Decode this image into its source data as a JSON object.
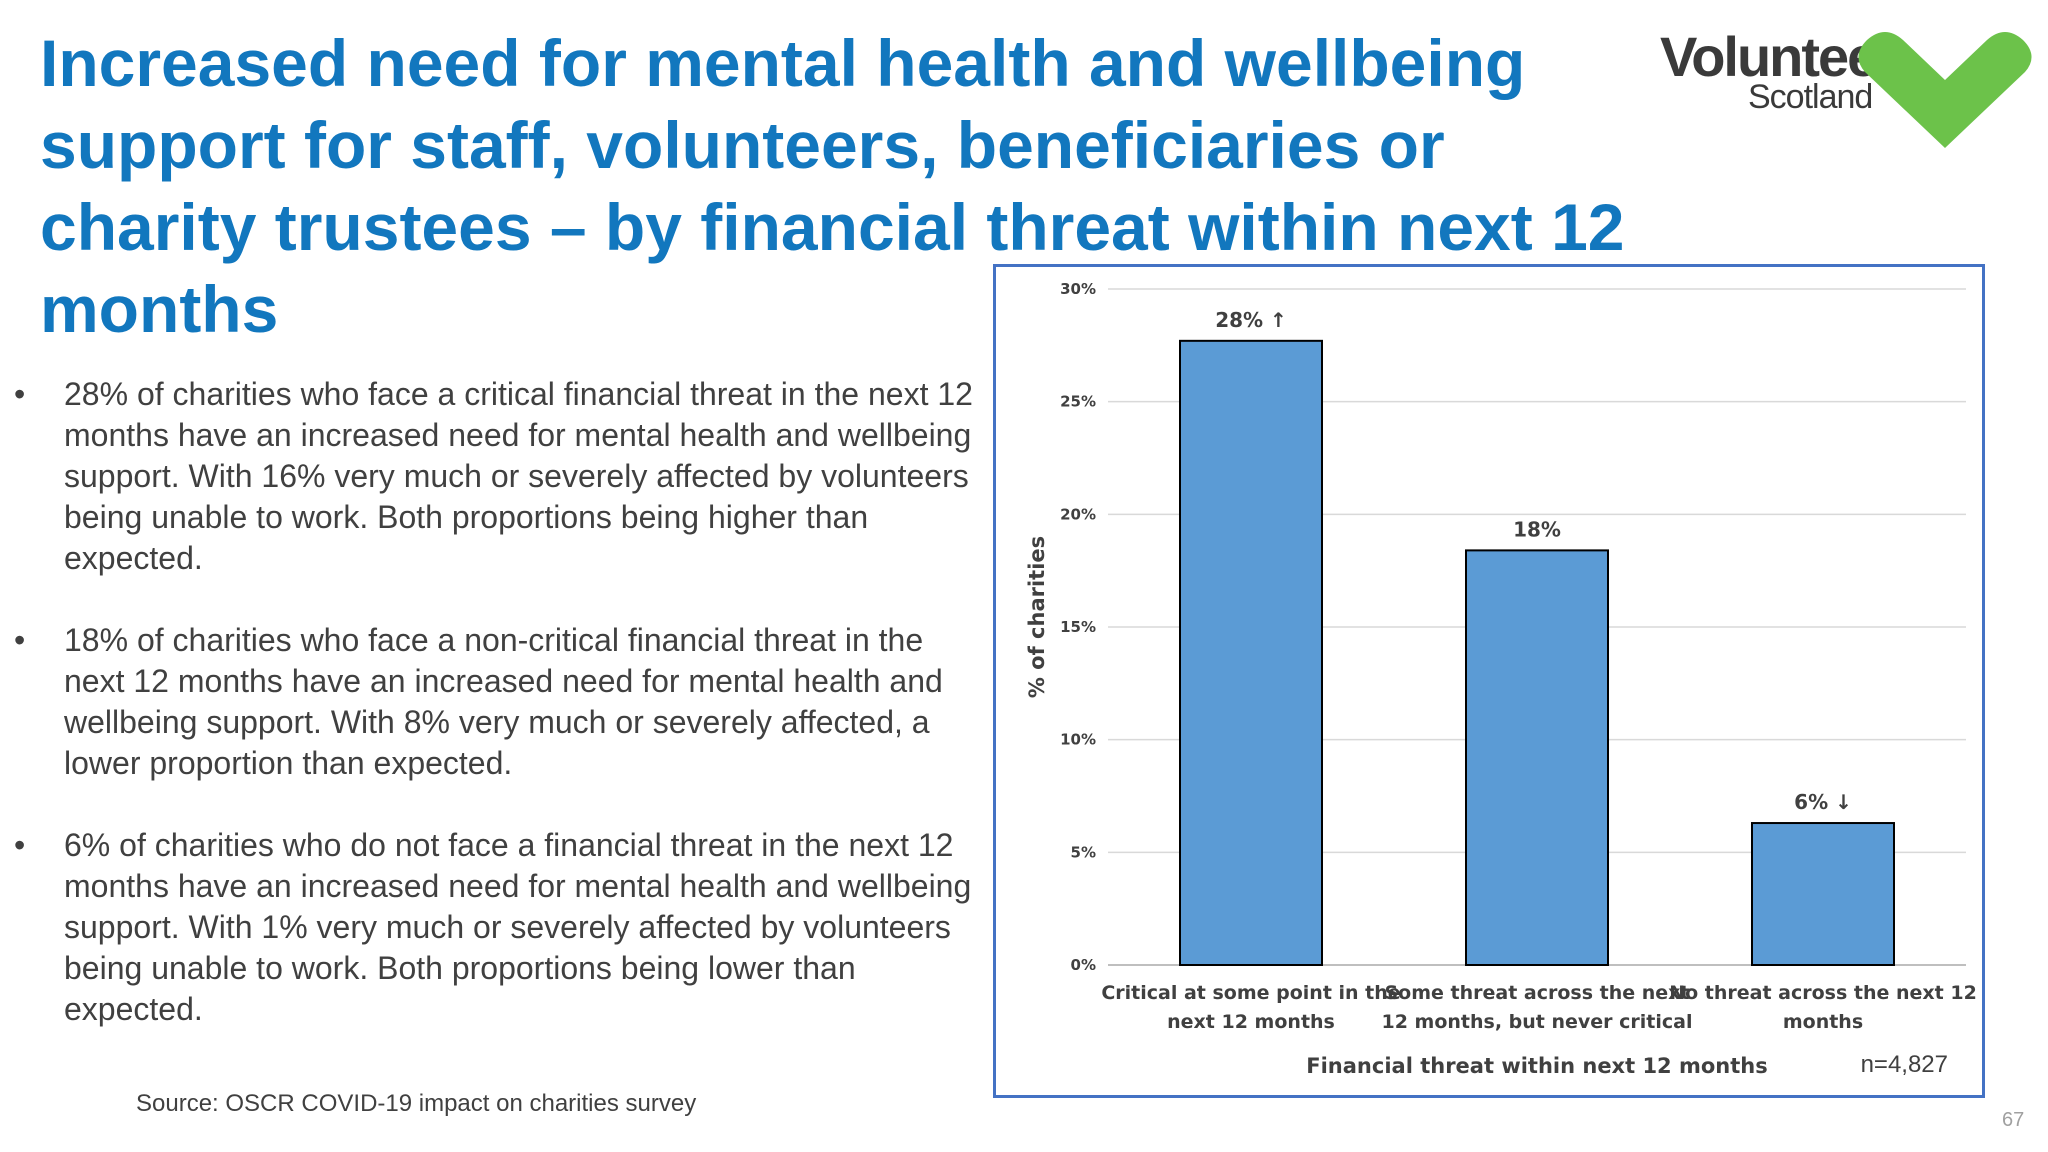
{
  "slide": {
    "title": "Increased need for mental health and wellbeing support for staff, volunteers, beneficiaries or charity trustees –  by financial threat within next 12 months",
    "bullets": [
      "28% of charities who face a critical financial threat in the next 12 months have an increased need for mental health and wellbeing support. With 16% very much or severely affected by volunteers being unable to work. Both proportions being higher than expected.",
      "18% of charities who face a non-critical financial threat in the next 12 months have an increased need for mental health and wellbeing support. With 8% very much or severely affected, a lower proportion than expected.",
      "6% of charities who do not face a financial threat in the next 12 months have an increased need for mental health and wellbeing support. With 1% very much or severely affected by volunteers being unable to work. Both proportions being lower than expected."
    ],
    "bullet_glyph": "•",
    "source": "Source: OSCR COVID-19 impact on charities survey",
    "page_number": "67"
  },
  "logo": {
    "line1": "Volunteer",
    "line2": "Scotland",
    "heart_color": "#6CC24A"
  },
  "chart_data": {
    "type": "bar",
    "categories": [
      [
        "Critical at some point in the",
        "next 12 months"
      ],
      [
        "Some threat across the next",
        "12 months, but never critical"
      ],
      [
        "No threat across the next 12",
        "months"
      ]
    ],
    "values": [
      27.7,
      18.4,
      6.3
    ],
    "data_labels": [
      "28% ↑",
      "18%",
      "6% ↓"
    ],
    "xlabel": "Financial threat within next 12 months",
    "ylabel": "% of charities",
    "ylim": [
      0,
      30
    ],
    "yticks": [
      "0%",
      "5%",
      "10%",
      "15%",
      "20%",
      "25%",
      "30%"
    ],
    "bar_color": "#5B9BD5",
    "grid": true,
    "note": "n=4,827"
  }
}
